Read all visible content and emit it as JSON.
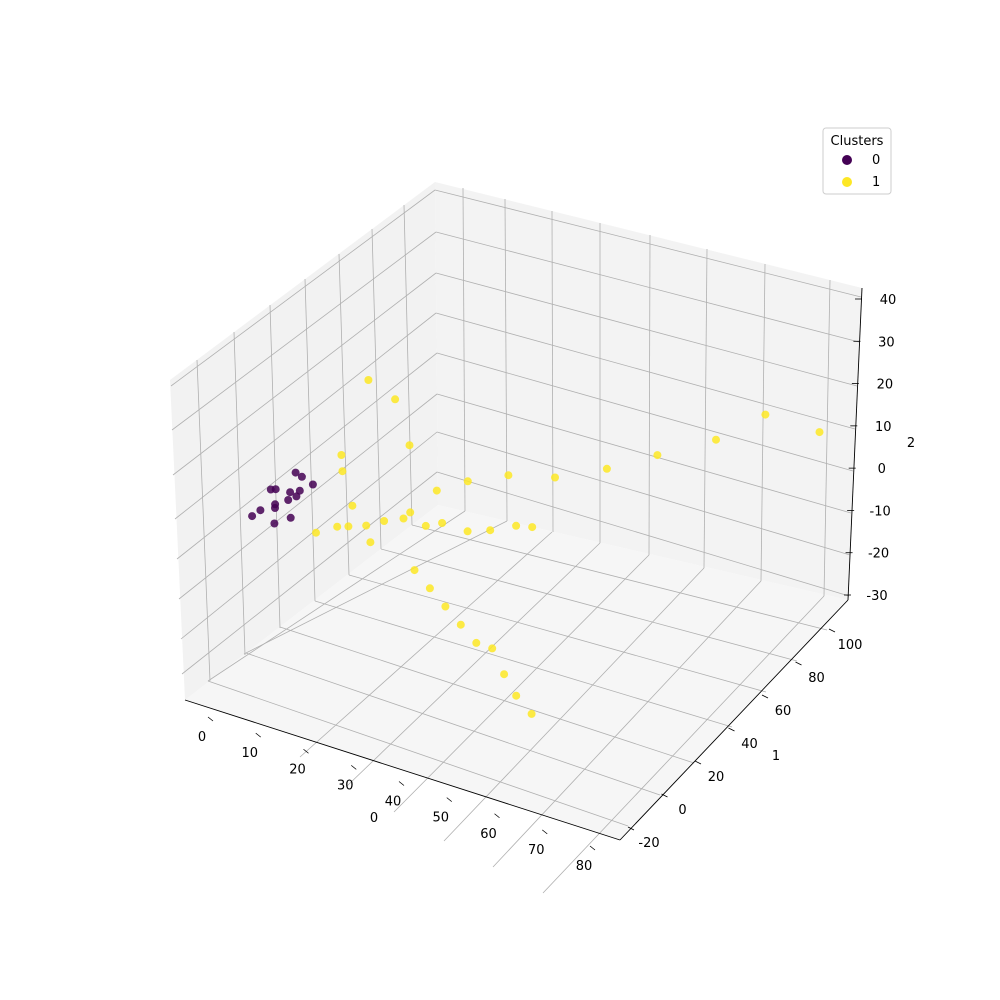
{
  "chart_data": {
    "type": "scatter",
    "projection": "3d",
    "title": "",
    "xlabel": "0",
    "ylabel": "1",
    "zlabel": "2",
    "xlim": [
      -5,
      85
    ],
    "ylim": [
      -25,
      112
    ],
    "zlim": [
      -33,
      41
    ],
    "x_ticks": [
      "0",
      "10",
      "20",
      "30",
      "40",
      "50",
      "60",
      "70",
      "80"
    ],
    "y_ticks": [
      "-20",
      "0",
      "20",
      "40",
      "60",
      "80",
      "100"
    ],
    "z_ticks": [
      "-30",
      "-20",
      "-10",
      "0",
      "10",
      "20",
      "30",
      "40"
    ],
    "legend": {
      "title": "Clusters",
      "placement": "top-right",
      "entries": [
        "0",
        "1"
      ]
    },
    "series": [
      {
        "name": "0",
        "color": "#440154",
        "points": [
          [
            2,
            -2,
            -2
          ],
          [
            3,
            0,
            -1
          ],
          [
            5,
            3,
            0
          ],
          [
            7,
            5,
            1
          ],
          [
            8,
            3,
            4
          ],
          [
            9,
            4,
            3
          ],
          [
            4,
            6,
            2
          ],
          [
            6,
            0,
            -3
          ],
          [
            3,
            9,
            -4
          ],
          [
            8,
            9,
            2
          ],
          [
            9,
            3,
            9
          ],
          [
            10,
            4,
            8
          ],
          [
            2,
            9,
            0
          ],
          [
            7,
            7,
            -4
          ],
          [
            11,
            8,
            5
          ]
        ]
      },
      {
        "name": "1",
        "color": "#fde725",
        "points": [
          [
            12,
            8,
            -6
          ],
          [
            15,
            12,
            -5
          ],
          [
            18,
            10,
            -3
          ],
          [
            20,
            15,
            -4
          ],
          [
            22,
            12,
            -6
          ],
          [
            16,
            18,
            -2
          ],
          [
            24,
            14,
            -1
          ],
          [
            26,
            20,
            -2
          ],
          [
            28,
            18,
            1
          ],
          [
            30,
            22,
            -3
          ],
          [
            34,
            20,
            0
          ],
          [
            38,
            24,
            -2
          ],
          [
            42,
            26,
            -1
          ],
          [
            46,
            30,
            0
          ],
          [
            50,
            28,
            2
          ],
          [
            32,
            10,
            -8
          ],
          [
            36,
            8,
            -10
          ],
          [
            40,
            6,
            -12
          ],
          [
            44,
            4,
            -14
          ],
          [
            48,
            2,
            -16
          ],
          [
            52,
            0,
            -15
          ],
          [
            56,
            -4,
            -18
          ],
          [
            60,
            -8,
            -20
          ],
          [
            64,
            -10,
            -22
          ],
          [
            30,
            28,
            3
          ],
          [
            34,
            35,
            4
          ],
          [
            40,
            42,
            5
          ],
          [
            47,
            50,
            4
          ],
          [
            55,
            58,
            6
          ],
          [
            62,
            68,
            8
          ],
          [
            70,
            80,
            10
          ],
          [
            75,
            95,
            12
          ],
          [
            83,
            105,
            7
          ],
          [
            16,
            25,
            25
          ],
          [
            20,
            30,
            20
          ],
          [
            18,
            5,
            12
          ],
          [
            14,
            16,
            10
          ],
          [
            25,
            25,
            13
          ]
        ]
      }
    ]
  }
}
